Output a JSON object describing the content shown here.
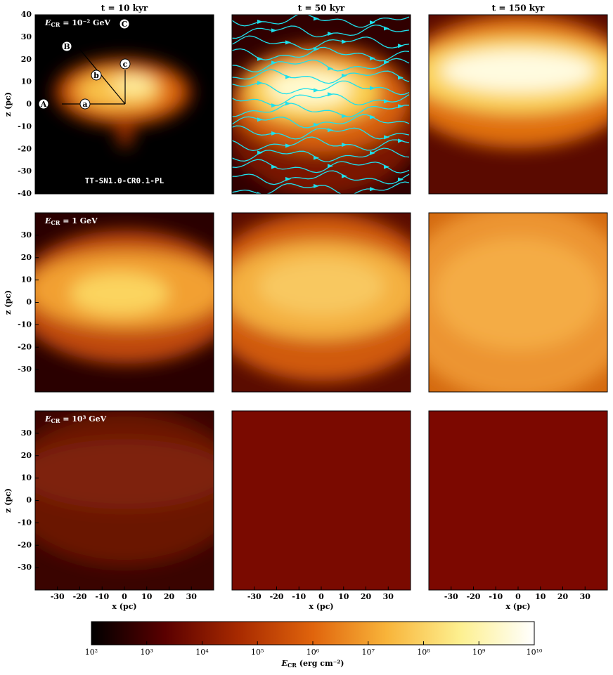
{
  "chart_data": {
    "type": "heatmap",
    "columns": [
      "t = 10 kyr",
      "t = 50 kyr",
      "t = 150 kyr"
    ],
    "rows": [
      {
        "label": {
          "symbol": "E",
          "sub": "CR",
          "rest": " = 10⁻² GeV"
        },
        "yticks": [
          -40,
          -30,
          -20,
          -10,
          0,
          10,
          20,
          30,
          40
        ]
      },
      {
        "label": {
          "symbol": "E",
          "sub": "CR",
          "rest": " = 1 GeV"
        },
        "yticks": [
          -30,
          -20,
          -10,
          0,
          10,
          20,
          30
        ]
      },
      {
        "label": {
          "symbol": "E",
          "sub": "CR",
          "rest": " = 10³ GeV"
        },
        "yticks": [
          -30,
          -20,
          -10,
          0,
          10,
          20,
          30
        ]
      }
    ],
    "xlabel": "x (pc)",
    "ylabel": "z (pc)",
    "xlim": [
      -40,
      40
    ],
    "ylim": [
      -40,
      40
    ],
    "xticks": [
      -30,
      -20,
      -10,
      0,
      10,
      20,
      30
    ],
    "annotations": {
      "points": [
        "A",
        "B",
        "C",
        "a",
        "b",
        "c"
      ],
      "run_label": "TT-SN1.0-CR0.1-PL"
    },
    "colorbar": {
      "label": {
        "symbol": "E",
        "sub": "CR",
        "rest": " (erg cm⁻²)"
      },
      "log": true,
      "lim": [
        100,
        10000000000
      ],
      "ticks": [
        {
          "value": 100,
          "label": "10²"
        },
        {
          "value": 1000,
          "label": "10³"
        },
        {
          "value": 10000,
          "label": "10⁴"
        },
        {
          "value": 100000,
          "label": "10⁵"
        },
        {
          "value": 1000000,
          "label": "10⁶"
        },
        {
          "value": 10000000,
          "label": "10⁷"
        },
        {
          "value": 100000000,
          "label": "10⁸"
        },
        {
          "value": 1000000000,
          "label": "10⁹"
        },
        {
          "value": 10000000000,
          "label": "10¹⁰"
        }
      ],
      "colormap": [
        "#000000",
        "#5a0000",
        "#a82a00",
        "#e0640c",
        "#f8b43a",
        "#fdf090",
        "#ffffff"
      ]
    },
    "grid": false
  }
}
